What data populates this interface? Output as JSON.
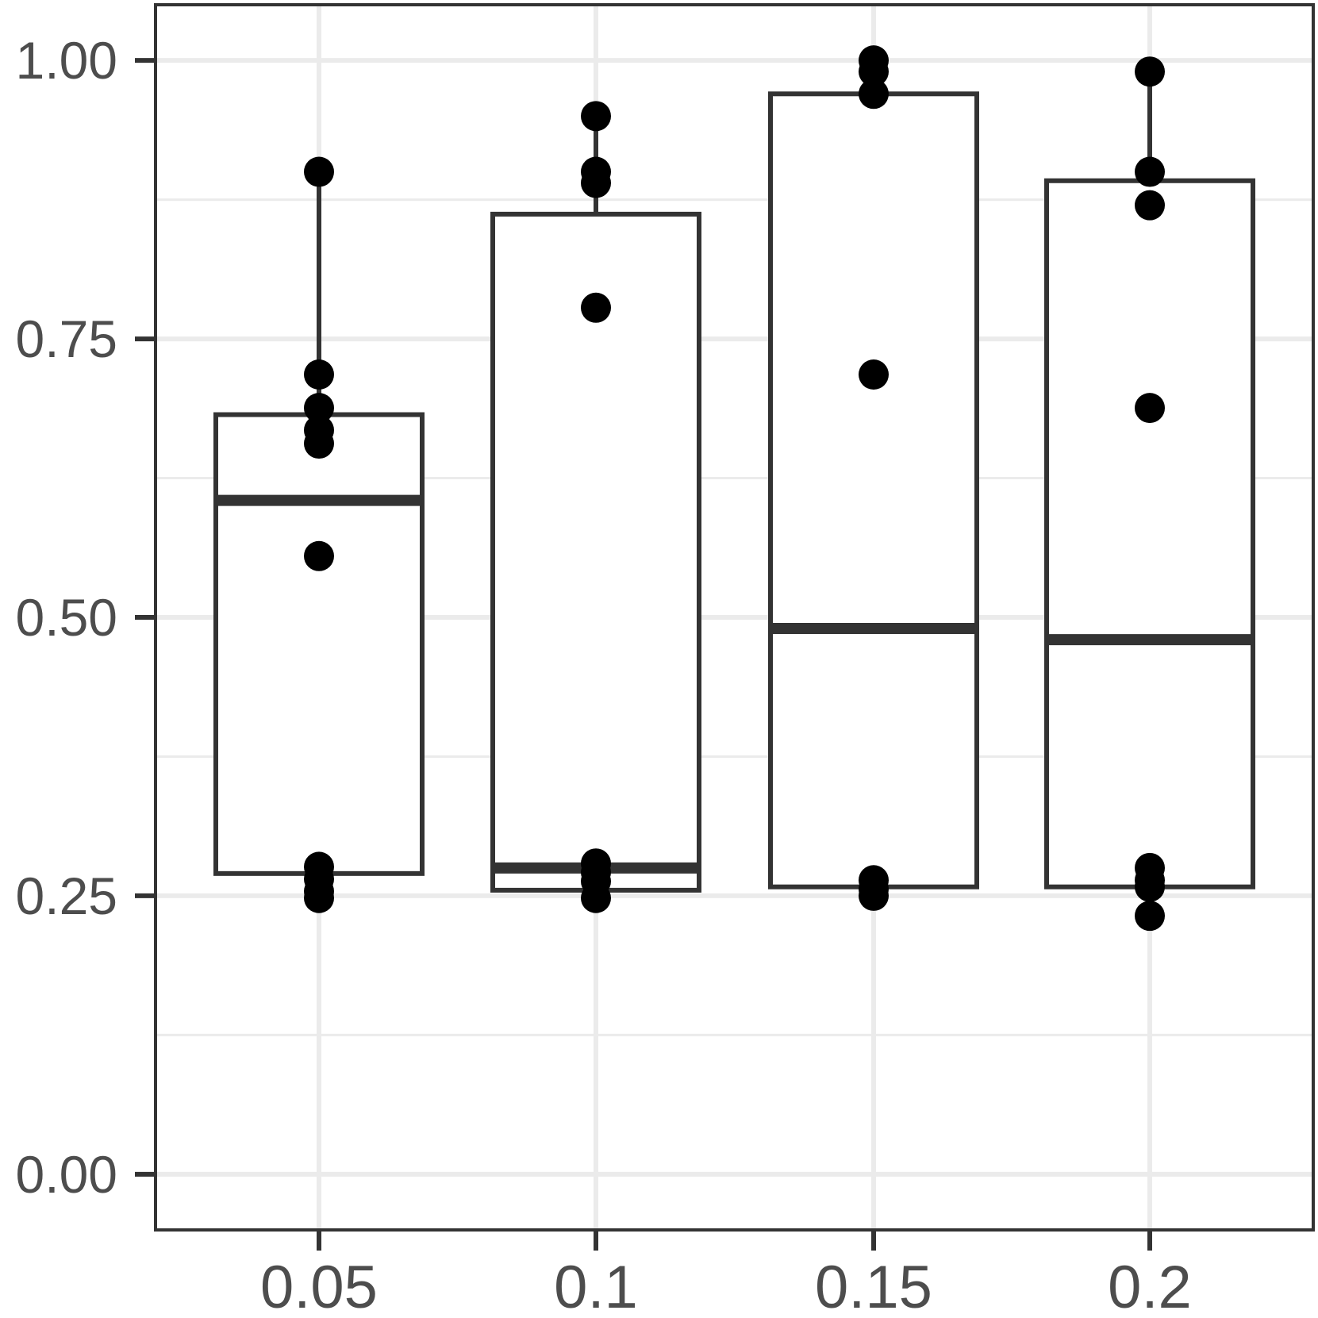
{
  "chart_data": {
    "type": "boxplot",
    "title": "",
    "xlabel": "",
    "ylabel": "",
    "categories": [
      "0.05",
      "0.1",
      "0.15",
      "0.2"
    ],
    "ylim": [
      -0.05,
      1.05
    ],
    "y_ticks": [
      0.0,
      0.25,
      0.5,
      0.75,
      1.0
    ],
    "y_tick_labels": [
      "0.00",
      "0.25",
      "0.50",
      "0.75",
      "1.00"
    ],
    "grid": true,
    "legend": "none",
    "boxes": [
      {
        "category": "0.05",
        "lower_whisker": 0.25,
        "q1": 0.27,
        "median": 0.605,
        "q3": 0.682,
        "upper_whisker": 0.9,
        "points": [
          0.9,
          0.718,
          0.688,
          0.668,
          0.656,
          0.555,
          0.276,
          0.265,
          0.254,
          0.248
        ]
      },
      {
        "category": "0.1",
        "lower_whisker": 0.25,
        "q1": 0.255,
        "median": 0.275,
        "q3": 0.862,
        "upper_whisker": 0.95,
        "points": [
          0.95,
          0.9,
          0.89,
          0.778,
          0.279,
          0.271,
          0.263,
          0.248
        ]
      },
      {
        "category": "0.15",
        "lower_whisker": 0.25,
        "q1": 0.258,
        "median": 0.49,
        "q3": 0.97,
        "upper_whisker": 1.0,
        "points": [
          1.0,
          0.99,
          0.97,
          0.718,
          0.264,
          0.256,
          0.25
        ]
      },
      {
        "category": "0.2",
        "lower_whisker": 0.232,
        "q1": 0.258,
        "median": 0.48,
        "q3": 0.892,
        "upper_whisker": 0.99,
        "points": [
          0.99,
          0.9,
          0.87,
          0.688,
          0.275,
          0.264,
          0.258,
          0.232
        ]
      }
    ],
    "colors": {
      "box_stroke": "#333333",
      "points": "#000000",
      "grid": "#ebebeb",
      "tick_text": "#4d4d4d"
    }
  }
}
